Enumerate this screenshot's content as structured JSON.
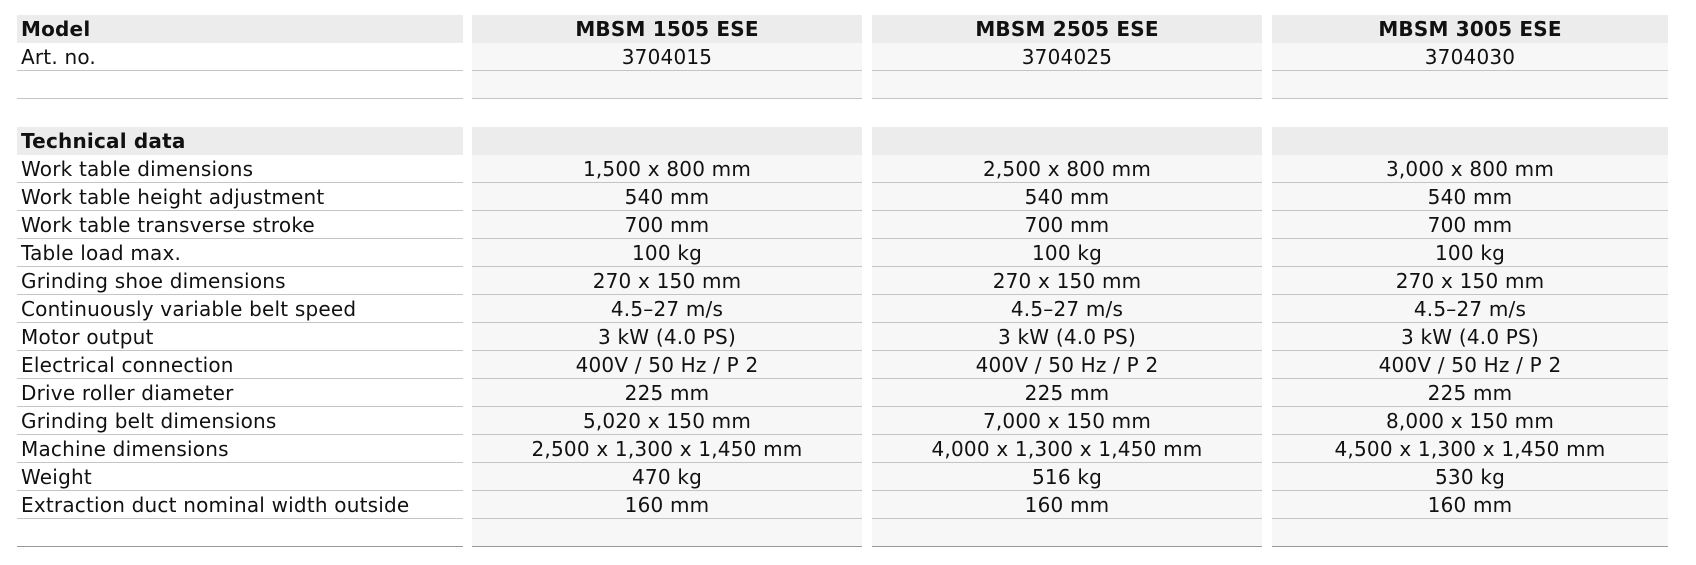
{
  "header": {
    "model_label": "Model",
    "models": [
      "MBSM 1505 ESE",
      "MBSM 2505 ESE",
      "MBSM 3005 ESE"
    ],
    "art_label": "Art. no.",
    "art_numbers": [
      "3704015",
      "3704025",
      "3704030"
    ]
  },
  "technical": {
    "title": "Technical data",
    "rows": [
      {
        "label": "Work table dimensions",
        "values": [
          "1,500 x 800 mm",
          "2,500 x 800 mm",
          "3,000 x 800 mm"
        ]
      },
      {
        "label": "Work table height adjustment",
        "values": [
          "540 mm",
          "540 mm",
          "540 mm"
        ]
      },
      {
        "label": "Work table transverse stroke",
        "values": [
          "700 mm",
          "700 mm",
          "700 mm"
        ]
      },
      {
        "label": "Table load max.",
        "values": [
          "100 kg",
          "100 kg",
          "100 kg"
        ]
      },
      {
        "label": "Grinding shoe dimensions",
        "values": [
          "270 x 150 mm",
          "270 x 150 mm",
          "270 x 150 mm"
        ]
      },
      {
        "label": "Continuously variable belt speed",
        "values": [
          "4.5–27 m/s",
          "4.5–27 m/s",
          "4.5–27 m/s"
        ]
      },
      {
        "label": "Motor output",
        "values": [
          "3 kW (4.0 PS)",
          "3 kW (4.0 PS)",
          "3 kW (4.0 PS)"
        ]
      },
      {
        "label": "Electrical connection",
        "values": [
          "400V / 50 Hz / P 2",
          "400V / 50 Hz / P 2",
          "400V / 50 Hz / P 2"
        ]
      },
      {
        "label": "Drive roller diameter",
        "values": [
          "225 mm",
          "225 mm",
          "225 mm"
        ]
      },
      {
        "label": "Grinding belt dimensions",
        "values": [
          "5,020 x 150 mm",
          "7,000 x 150 mm",
          "8,000 x 150 mm"
        ]
      },
      {
        "label": "Machine dimensions",
        "values": [
          "2,500 x 1,300 x 1,450 mm",
          "4,000 x 1,300 x 1,450 mm",
          "4,500 x 1,300 x 1,450 mm"
        ]
      },
      {
        "label": "Weight",
        "values": [
          "470 kg",
          "516 kg",
          "530 kg"
        ]
      },
      {
        "label": "Extraction duct nominal width outside",
        "values": [
          "160 mm",
          "160 mm",
          "160 mm"
        ]
      }
    ]
  }
}
